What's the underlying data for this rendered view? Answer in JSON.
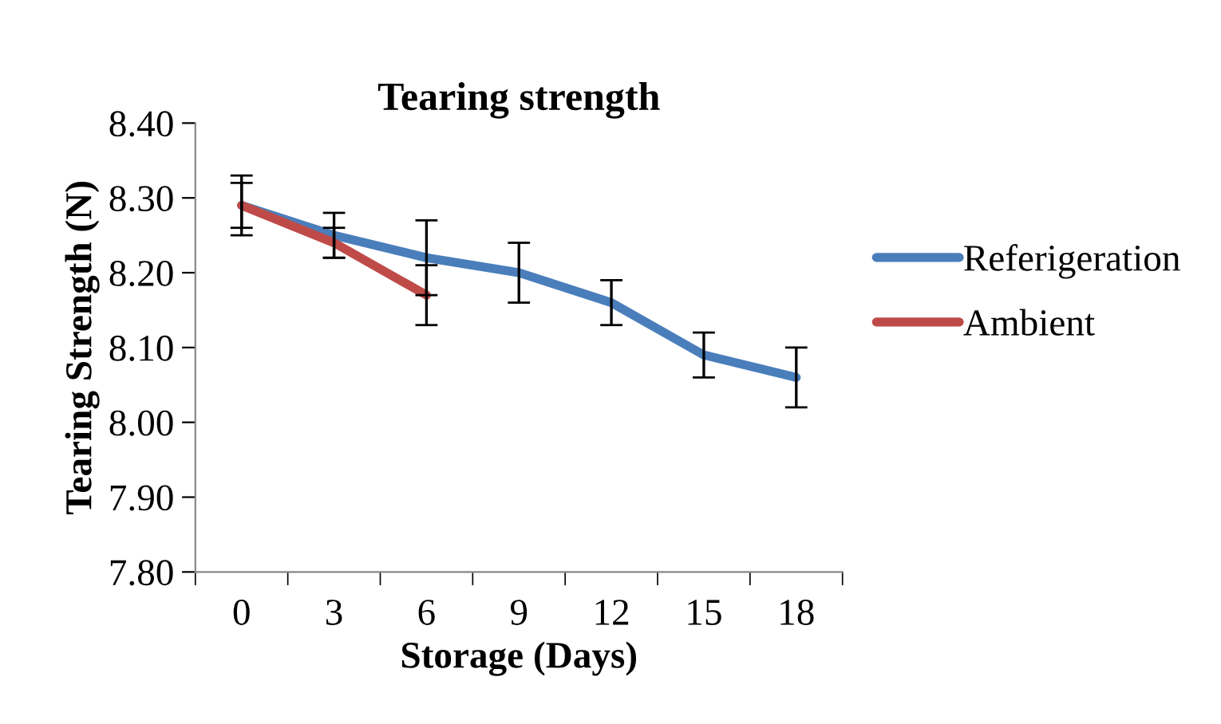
{
  "chart_data": {
    "type": "line",
    "title": "Tearing strength",
    "xlabel": "Storage (Days)",
    "ylabel": "Tearing Strength (N)",
    "categories": [
      "0",
      "3",
      "6",
      "9",
      "12",
      "15",
      "18"
    ],
    "series": [
      {
        "name": "Referigeration",
        "color": "#4a7ebb",
        "values": [
          8.29,
          8.25,
          8.22,
          8.2,
          8.16,
          8.09,
          8.06
        ],
        "errors": [
          0.04,
          0.03,
          0.05,
          0.04,
          0.03,
          0.03,
          0.04
        ]
      },
      {
        "name": "Ambient",
        "color": "#be4b48",
        "values": [
          8.29,
          8.24,
          8.17,
          null,
          null,
          null,
          null
        ],
        "errors": [
          0.03,
          0.02,
          0.04,
          null,
          null,
          null,
          null
        ]
      }
    ],
    "ylim": [
      7.8,
      8.4
    ],
    "yticks": [
      {
        "value": 7.8,
        "label": "7.80"
      },
      {
        "value": 7.9,
        "label": "7.90"
      },
      {
        "value": 8.0,
        "label": "8.00"
      },
      {
        "value": 8.1,
        "label": "8.10"
      },
      {
        "value": 8.2,
        "label": "8.20"
      },
      {
        "value": 8.3,
        "label": "8.30"
      },
      {
        "value": 8.4,
        "label": "8.40"
      }
    ],
    "grid": false,
    "legend": "right",
    "marker": "none",
    "line_style": "solid"
  }
}
